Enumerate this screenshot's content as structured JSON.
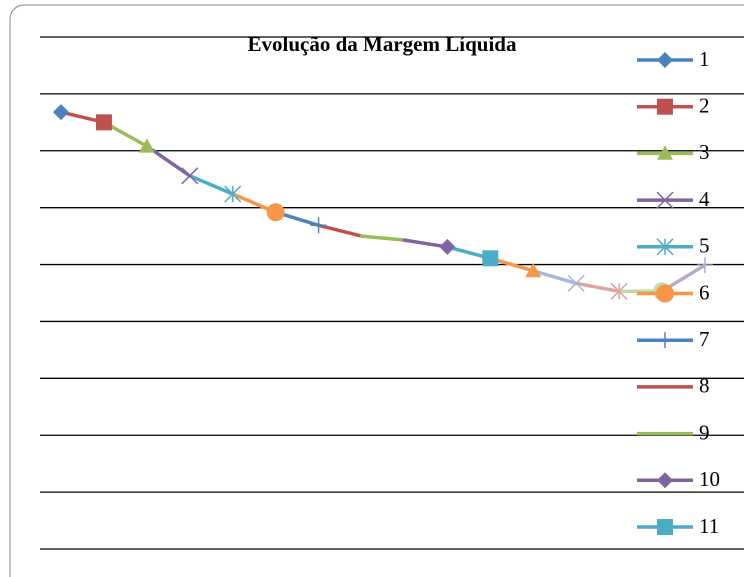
{
  "chart_data": {
    "type": "line",
    "title": "Evolução da Margem Líquida",
    "ylim": [
      0,
      9
    ],
    "yticks": [
      0,
      1,
      2,
      3,
      4,
      5,
      6,
      7,
      8,
      9
    ],
    "grid": true,
    "series": [
      {
        "name": "1",
        "color": "#4F81BD",
        "marker": "diamond",
        "values": [
          7.68
        ]
      },
      {
        "name": "2",
        "color": "#C0504D",
        "marker": "square",
        "values": [
          7.5
        ]
      },
      {
        "name": "3",
        "color": "#9BBB59",
        "marker": "triangle",
        "values": [
          7.08
        ]
      },
      {
        "name": "4",
        "color": "#8064A2",
        "marker": "x",
        "values": [
          6.56
        ]
      },
      {
        "name": "5",
        "color": "#4BACC6",
        "marker": "star",
        "values": [
          6.24
        ]
      },
      {
        "name": "6",
        "color": "#F79646",
        "marker": "circle",
        "values": [
          5.92
        ]
      },
      {
        "name": "7",
        "color": "#4F81BD",
        "marker": "plus",
        "values": [
          5.69
        ]
      },
      {
        "name": "8",
        "color": "#C0504D",
        "marker": "none",
        "values": [
          5.5
        ]
      },
      {
        "name": "9",
        "color": "#9BBB59",
        "marker": "none",
        "values": [
          5.43
        ]
      },
      {
        "name": "10",
        "color": "#8064A2",
        "marker": "diamond",
        "values": [
          5.31
        ]
      },
      {
        "name": "11",
        "color": "#4BACC6",
        "marker": "square",
        "values": [
          5.11
        ]
      },
      {
        "color": "#F79646",
        "marker": "triangle",
        "values": [
          4.89
        ]
      },
      {
        "color": "#A5B9D8",
        "marker": "x",
        "values": [
          4.67
        ]
      },
      {
        "color": "#DBA3A2",
        "marker": "star",
        "values": [
          4.53
        ]
      },
      {
        "color": "#C6D9A8",
        "marker": "circle",
        "values": [
          4.53
        ]
      },
      {
        "color": "#B9A9CC",
        "marker": "plus",
        "values": [
          4.99
        ]
      }
    ]
  }
}
